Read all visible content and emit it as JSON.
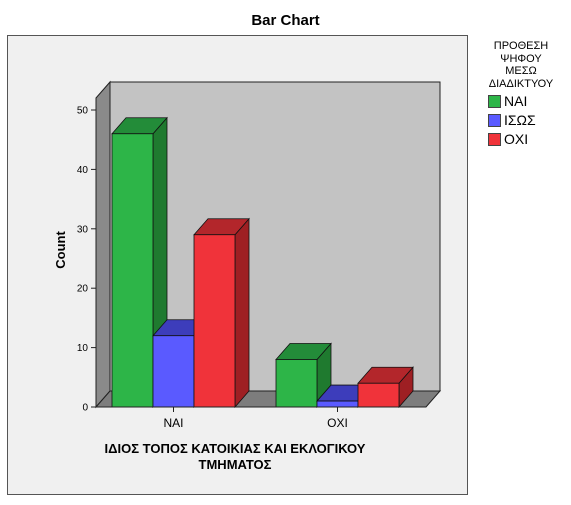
{
  "chart_data": {
    "type": "bar",
    "title": "Bar Chart",
    "xlabel_lines": [
      "ΙΔΙΟΣ ΤΟΠΟΣ ΚΑΤΟΙΚΙΑΣ ΚΑΙ ΕΚΛΟΓΙΚΟΥ",
      "ΤΜΗΜΑΤΟΣ"
    ],
    "ylabel": "Count",
    "ylim": [
      0,
      50
    ],
    "yticks": [
      0,
      10,
      20,
      30,
      40,
      50
    ],
    "categories": [
      "ΝΑΙ",
      "ΟΧΙ"
    ],
    "legend_title_lines": [
      "ΠΡΟΘΕΣΗ",
      "ΨΗΦΟΥ",
      "ΜΕΣΩ",
      "ΔΙΑΔΙΚΤΥΟΥ"
    ],
    "legend_position": "right",
    "grid": false,
    "three_d": true,
    "series": [
      {
        "name": "ΝΑΙ",
        "values": [
          46,
          8
        ],
        "color": "#2db548",
        "side_color": "#1f7a2f",
        "top_color": "#238c39"
      },
      {
        "name": "ΙΣΩΣ",
        "values": [
          12,
          1
        ],
        "color": "#5a5aff",
        "side_color": "#2b2b9e",
        "top_color": "#3d3dbb"
      },
      {
        "name": "ΟΧΙ",
        "values": [
          29,
          4
        ],
        "color": "#f0333a",
        "side_color": "#9e1f23",
        "top_color": "#b3262b"
      }
    ],
    "colors": {
      "wall": "#c3c3c3",
      "wall_side": "#8a8a8a",
      "floor": "#7d7d7d",
      "frame_bg": "#f0f0f0"
    }
  }
}
